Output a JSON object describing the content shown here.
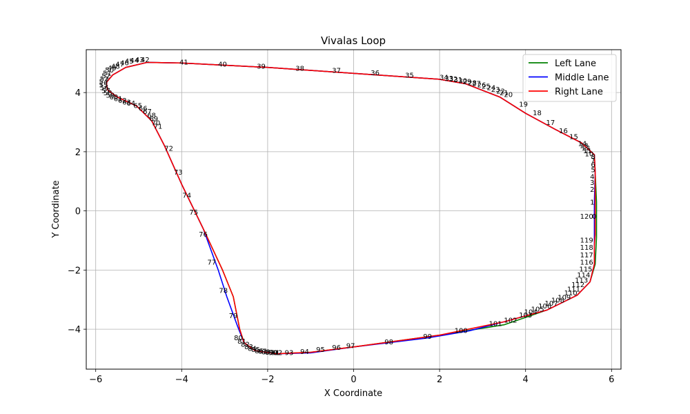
{
  "chart_data": {
    "type": "line",
    "title": "Vivalas Loop",
    "xlabel": "X Coordinate",
    "ylabel": "Y Coordinate",
    "xlim": [
      -6.22,
      6.22
    ],
    "ylim": [
      -5.35,
      5.45
    ],
    "xticks": [
      -6,
      -4,
      -2,
      0,
      2,
      4,
      6
    ],
    "yticks": [
      -4,
      -2,
      0,
      2,
      4
    ],
    "xtick_labels": [
      "−6",
      "−4",
      "−2",
      "0",
      "2",
      "4",
      "6"
    ],
    "ytick_labels": [
      "−4",
      "−2",
      "0",
      "2",
      "4"
    ],
    "grid": true,
    "legend_position": "top-right",
    "series": [
      {
        "name": "Left Lane",
        "color": "#008000",
        "points": [
          [
            5.65,
            -0.9
          ],
          [
            5.65,
            0.3
          ],
          [
            5.62,
            1.3
          ],
          [
            5.6,
            1.9
          ],
          [
            5.3,
            2.3
          ],
          [
            4.7,
            2.75
          ],
          [
            4.0,
            3.3
          ],
          [
            3.4,
            3.85
          ],
          [
            2.6,
            4.3
          ],
          [
            2.0,
            4.45
          ],
          [
            0.0,
            4.65
          ],
          [
            -2.0,
            4.85
          ],
          [
            -4.0,
            5.0
          ],
          [
            -4.8,
            5.02
          ],
          [
            -5.3,
            4.85
          ],
          [
            -5.6,
            4.6
          ],
          [
            -5.75,
            4.35
          ],
          [
            -5.73,
            4.1
          ],
          [
            -5.5,
            3.85
          ],
          [
            -5.05,
            3.55
          ],
          [
            -4.7,
            3.05
          ],
          [
            -4.4,
            2.2
          ],
          [
            -4.0,
            0.9
          ],
          [
            -3.5,
            -0.6
          ],
          [
            -3.05,
            -2.0
          ],
          [
            -2.8,
            -2.9
          ],
          [
            -2.65,
            -4.0
          ],
          [
            -2.55,
            -4.45
          ],
          [
            -2.3,
            -4.72
          ],
          [
            -1.8,
            -4.83
          ],
          [
            -1.0,
            -4.78
          ],
          [
            0.0,
            -4.6
          ],
          [
            2.0,
            -4.2
          ],
          [
            3.5,
            -3.85
          ],
          [
            4.5,
            -3.35
          ],
          [
            5.2,
            -2.85
          ],
          [
            5.5,
            -2.4
          ],
          [
            5.62,
            -1.8
          ],
          [
            5.65,
            -0.9
          ]
        ]
      },
      {
        "name": "Middle Lane",
        "color": "#0000ff",
        "points": [
          [
            5.6,
            -0.9
          ],
          [
            5.6,
            0.3
          ],
          [
            5.62,
            1.3
          ],
          [
            5.6,
            1.9
          ],
          [
            5.3,
            2.3
          ],
          [
            4.7,
            2.75
          ],
          [
            4.0,
            3.3
          ],
          [
            3.4,
            3.85
          ],
          [
            2.6,
            4.3
          ],
          [
            2.0,
            4.45
          ],
          [
            0.0,
            4.65
          ],
          [
            -2.0,
            4.85
          ],
          [
            -4.0,
            5.0
          ],
          [
            -4.8,
            5.02
          ],
          [
            -5.3,
            4.85
          ],
          [
            -5.6,
            4.6
          ],
          [
            -5.75,
            4.35
          ],
          [
            -5.73,
            4.1
          ],
          [
            -5.5,
            3.85
          ],
          [
            -5.05,
            3.55
          ],
          [
            -4.7,
            3.05
          ],
          [
            -4.4,
            2.2
          ],
          [
            -4.0,
            0.9
          ],
          [
            -3.5,
            -0.6
          ],
          [
            -3.15,
            -2.0
          ],
          [
            -2.95,
            -2.9
          ],
          [
            -2.7,
            -3.9
          ],
          [
            -2.55,
            -4.45
          ],
          [
            -2.3,
            -4.72
          ],
          [
            -1.8,
            -4.83
          ],
          [
            -1.0,
            -4.8
          ],
          [
            0.0,
            -4.6
          ],
          [
            1.7,
            -4.3
          ],
          [
            2.7,
            -4.05
          ],
          [
            3.5,
            -3.75
          ],
          [
            4.5,
            -3.35
          ],
          [
            5.2,
            -2.85
          ],
          [
            5.5,
            -2.4
          ],
          [
            5.6,
            -1.8
          ],
          [
            5.6,
            -0.9
          ]
        ]
      },
      {
        "name": "Right Lane",
        "color": "#ff0000",
        "points": [
          [
            5.6,
            -1.2
          ],
          [
            5.62,
            -0.8
          ],
          [
            5.62,
            1.3
          ],
          [
            5.6,
            1.9
          ],
          [
            5.3,
            2.3
          ],
          [
            4.7,
            2.75
          ],
          [
            4.0,
            3.3
          ],
          [
            3.4,
            3.85
          ],
          [
            2.6,
            4.3
          ],
          [
            2.0,
            4.45
          ],
          [
            0.0,
            4.65
          ],
          [
            -2.0,
            4.85
          ],
          [
            -4.0,
            5.0
          ],
          [
            -4.8,
            5.02
          ],
          [
            -5.3,
            4.85
          ],
          [
            -5.6,
            4.6
          ],
          [
            -5.75,
            4.35
          ],
          [
            -5.73,
            4.1
          ],
          [
            -5.5,
            3.85
          ],
          [
            -5.05,
            3.55
          ],
          [
            -4.7,
            3.05
          ],
          [
            -4.4,
            2.2
          ],
          [
            -4.0,
            0.9
          ],
          [
            -3.5,
            -0.6
          ],
          [
            -3.05,
            -2.0
          ],
          [
            -2.8,
            -2.9
          ],
          [
            -2.65,
            -4.0
          ],
          [
            -2.55,
            -4.45
          ],
          [
            -2.3,
            -4.72
          ],
          [
            -1.8,
            -4.83
          ],
          [
            -1.0,
            -4.78
          ],
          [
            0.0,
            -4.6
          ],
          [
            2.0,
            -4.2
          ],
          [
            3.5,
            -3.75
          ],
          [
            4.5,
            -3.35
          ],
          [
            5.2,
            -2.85
          ],
          [
            5.5,
            -2.4
          ],
          [
            5.6,
            -1.8
          ],
          [
            5.6,
            -1.2
          ]
        ]
      }
    ],
    "point_labels": [
      {
        "text": "120",
        "x": 5.42,
        "y": -0.2
      },
      {
        "text": "0",
        "x": 5.6,
        "y": -0.2
      },
      {
        "text": "1",
        "x": 5.55,
        "y": 0.28
      },
      {
        "text": "2",
        "x": 5.55,
        "y": 0.72
      },
      {
        "text": "3",
        "x": 5.55,
        "y": 0.95
      },
      {
        "text": "4",
        "x": 5.55,
        "y": 1.15
      },
      {
        "text": "5",
        "x": 5.57,
        "y": 1.38
      },
      {
        "text": "6",
        "x": 5.57,
        "y": 1.55
      },
      {
        "text": "7",
        "x": 5.57,
        "y": 1.7
      },
      {
        "text": "8",
        "x": 5.57,
        "y": 1.82
      },
      {
        "text": "10",
        "x": 5.48,
        "y": 1.92
      },
      {
        "text": "11",
        "x": 5.44,
        "y": 2.02
      },
      {
        "text": "12",
        "x": 5.4,
        "y": 2.12
      },
      {
        "text": "13",
        "x": 5.36,
        "y": 2.2
      },
      {
        "text": "14",
        "x": 5.32,
        "y": 2.27
      },
      {
        "text": "15",
        "x": 5.12,
        "y": 2.5
      },
      {
        "text": "16",
        "x": 4.88,
        "y": 2.7
      },
      {
        "text": "17",
        "x": 4.58,
        "y": 2.98
      },
      {
        "text": "18",
        "x": 4.27,
        "y": 3.3
      },
      {
        "text": "19",
        "x": 3.95,
        "y": 3.6
      },
      {
        "text": "20",
        "x": 3.6,
        "y": 3.92
      },
      {
        "text": "21",
        "x": 3.5,
        "y": 3.98
      },
      {
        "text": "22",
        "x": 3.42,
        "y": 4.04
      },
      {
        "text": "23",
        "x": 3.3,
        "y": 4.1
      },
      {
        "text": "24",
        "x": 3.2,
        "y": 4.15
      },
      {
        "text": "25",
        "x": 3.08,
        "y": 4.2
      },
      {
        "text": "26",
        "x": 2.98,
        "y": 4.25
      },
      {
        "text": "27",
        "x": 2.86,
        "y": 4.29
      },
      {
        "text": "28",
        "x": 2.76,
        "y": 4.32
      },
      {
        "text": "29",
        "x": 2.64,
        "y": 4.36
      },
      {
        "text": "30",
        "x": 2.54,
        "y": 4.39
      },
      {
        "text": "31",
        "x": 2.43,
        "y": 4.42
      },
      {
        "text": "32",
        "x": 2.32,
        "y": 4.45
      },
      {
        "text": "33",
        "x": 2.22,
        "y": 4.47
      },
      {
        "text": "34",
        "x": 2.1,
        "y": 4.5
      },
      {
        "text": "35",
        "x": 1.3,
        "y": 4.57
      },
      {
        "text": "36",
        "x": 0.5,
        "y": 4.66
      },
      {
        "text": "37",
        "x": -0.4,
        "y": 4.74
      },
      {
        "text": "38",
        "x": -1.25,
        "y": 4.81
      },
      {
        "text": "39",
        "x": -2.15,
        "y": 4.88
      },
      {
        "text": "40",
        "x": -3.05,
        "y": 4.95
      },
      {
        "text": "41",
        "x": -3.95,
        "y": 5.02
      },
      {
        "text": "42",
        "x": -4.85,
        "y": 5.1
      },
      {
        "text": "43",
        "x": -4.98,
        "y": 5.1
      },
      {
        "text": "44",
        "x": -5.1,
        "y": 5.08
      },
      {
        "text": "45",
        "x": -5.22,
        "y": 5.05
      },
      {
        "text": "46",
        "x": -5.33,
        "y": 5.0
      },
      {
        "text": "47",
        "x": -5.44,
        "y": 4.95
      },
      {
        "text": "48",
        "x": -5.54,
        "y": 4.88
      },
      {
        "text": "49",
        "x": -5.62,
        "y": 4.82
      },
      {
        "text": "50",
        "x": -5.68,
        "y": 4.75
      },
      {
        "text": "51",
        "x": -5.73,
        "y": 4.65
      },
      {
        "text": "52",
        "x": -5.76,
        "y": 4.55
      },
      {
        "text": "53",
        "x": -5.8,
        "y": 4.45
      },
      {
        "text": "54",
        "x": -5.82,
        "y": 4.35
      },
      {
        "text": "55",
        "x": -5.82,
        "y": 4.25
      },
      {
        "text": "56",
        "x": -5.8,
        "y": 4.15
      },
      {
        "text": "57",
        "x": -5.76,
        "y": 4.05
      },
      {
        "text": "58",
        "x": -5.72,
        "y": 3.98
      },
      {
        "text": "59",
        "x": -5.66,
        "y": 3.9
      },
      {
        "text": "60",
        "x": -5.58,
        "y": 3.84
      },
      {
        "text": "61",
        "x": -5.48,
        "y": 3.78
      },
      {
        "text": "62",
        "x": -5.38,
        "y": 3.72
      },
      {
        "text": "63",
        "x": -5.28,
        "y": 3.67
      },
      {
        "text": "64",
        "x": -5.18,
        "y": 3.63
      },
      {
        "text": "65",
        "x": -5.02,
        "y": 3.55
      },
      {
        "text": "66",
        "x": -4.9,
        "y": 3.45
      },
      {
        "text": "67",
        "x": -4.8,
        "y": 3.35
      },
      {
        "text": "68",
        "x": -4.7,
        "y": 3.22
      },
      {
        "text": "69",
        "x": -4.65,
        "y": 3.1
      },
      {
        "text": "70",
        "x": -4.6,
        "y": 2.97
      },
      {
        "text": "71",
        "x": -4.55,
        "y": 2.85
      },
      {
        "text": "72",
        "x": -4.3,
        "y": 2.1
      },
      {
        "text": "73",
        "x": -4.08,
        "y": 1.3
      },
      {
        "text": "74",
        "x": -3.88,
        "y": 0.52
      },
      {
        "text": "75",
        "x": -3.72,
        "y": -0.05
      },
      {
        "text": "76",
        "x": -3.5,
        "y": -0.8
      },
      {
        "text": "77",
        "x": -3.3,
        "y": -1.75
      },
      {
        "text": "78",
        "x": -3.03,
        "y": -2.7
      },
      {
        "text": "79",
        "x": -2.8,
        "y": -3.55
      },
      {
        "text": "80",
        "x": -2.68,
        "y": -4.3
      },
      {
        "text": "81",
        "x": -2.6,
        "y": -4.42
      },
      {
        "text": "82",
        "x": -2.52,
        "y": -4.52
      },
      {
        "text": "83",
        "x": -2.44,
        "y": -4.6
      },
      {
        "text": "84",
        "x": -2.36,
        "y": -4.66
      },
      {
        "text": "85",
        "x": -2.28,
        "y": -4.7
      },
      {
        "text": "86",
        "x": -2.2,
        "y": -4.74
      },
      {
        "text": "87",
        "x": -2.12,
        "y": -4.76
      },
      {
        "text": "88",
        "x": -2.04,
        "y": -4.78
      },
      {
        "text": "89",
        "x": -1.96,
        "y": -4.79
      },
      {
        "text": "90",
        "x": -1.88,
        "y": -4.8
      },
      {
        "text": "91",
        "x": -1.82,
        "y": -4.8
      },
      {
        "text": "92",
        "x": -1.76,
        "y": -4.8
      },
      {
        "text": "93",
        "x": -1.5,
        "y": -4.8
      },
      {
        "text": "94",
        "x": -1.14,
        "y": -4.77
      },
      {
        "text": "95",
        "x": -0.77,
        "y": -4.7
      },
      {
        "text": "96",
        "x": -0.4,
        "y": -4.63
      },
      {
        "text": "97",
        "x": -0.07,
        "y": -4.57
      },
      {
        "text": "98",
        "x": 0.82,
        "y": -4.44
      },
      {
        "text": "99",
        "x": 1.72,
        "y": -4.25
      },
      {
        "text": "100",
        "x": 2.5,
        "y": -4.05
      },
      {
        "text": "101",
        "x": 3.3,
        "y": -3.82
      },
      {
        "text": "102",
        "x": 3.65,
        "y": -3.7
      },
      {
        "text": "103",
        "x": 4.0,
        "y": -3.53
      },
      {
        "text": "104",
        "x": 4.12,
        "y": -3.43
      },
      {
        "text": "105",
        "x": 4.28,
        "y": -3.33
      },
      {
        "text": "106",
        "x": 4.45,
        "y": -3.23
      },
      {
        "text": "107",
        "x": 4.6,
        "y": -3.13
      },
      {
        "text": "108",
        "x": 4.75,
        "y": -3.03
      },
      {
        "text": "109",
        "x": 4.9,
        "y": -2.93
      },
      {
        "text": "110",
        "x": 5.05,
        "y": -2.78
      },
      {
        "text": "111",
        "x": 5.12,
        "y": -2.65
      },
      {
        "text": "112",
        "x": 5.22,
        "y": -2.5
      },
      {
        "text": "113",
        "x": 5.3,
        "y": -2.35
      },
      {
        "text": "114",
        "x": 5.35,
        "y": -2.18
      },
      {
        "text": "115",
        "x": 5.4,
        "y": -1.98
      },
      {
        "text": "116",
        "x": 5.42,
        "y": -1.75
      },
      {
        "text": "117",
        "x": 5.42,
        "y": -1.5
      },
      {
        "text": "118",
        "x": 5.42,
        "y": -1.25
      },
      {
        "text": "119",
        "x": 5.42,
        "y": -1.0
      }
    ]
  }
}
